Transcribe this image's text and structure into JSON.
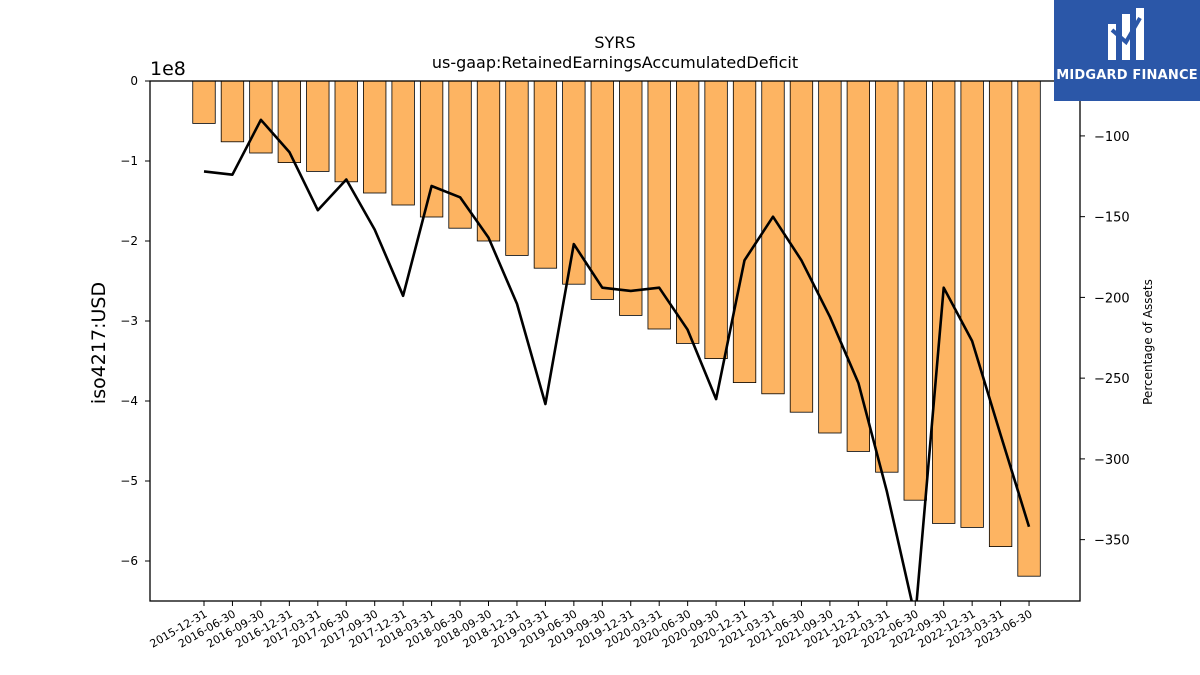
{
  "chart_data": {
    "type": "bar",
    "title": "SYRS",
    "subtitle": "us-gaap:RetainedEarningsAccumulatedDeficit",
    "ylabel": "iso4217:USD",
    "y2label": "Percentage of Assets",
    "y_offset_label": "1e8",
    "ylim": [
      -6.5,
      0
    ],
    "y_ticks": [
      0,
      -1,
      -2,
      -3,
      -4,
      -5,
      -6
    ],
    "y2lim": [
      -388,
      -66
    ],
    "y2_ticks": [
      -100,
      -150,
      -200,
      -250,
      -300,
      -350
    ],
    "categories": [
      "2015-12-31",
      "2016-06-30",
      "2016-09-30",
      "2016-12-31",
      "2017-03-31",
      "2017-06-30",
      "2017-09-30",
      "2017-12-31",
      "2018-03-31",
      "2018-06-30",
      "2018-09-30",
      "2018-12-31",
      "2019-03-31",
      "2019-06-30",
      "2019-09-30",
      "2019-12-31",
      "2020-03-31",
      "2020-06-30",
      "2020-09-30",
      "2020-12-31",
      "2021-03-31",
      "2021-06-30",
      "2021-09-30",
      "2021-12-31",
      "2022-03-31",
      "2022-06-30",
      "2022-09-30",
      "2022-12-31",
      "2023-03-31",
      "2023-06-30"
    ],
    "series": [
      {
        "type": "bar",
        "axis": "left",
        "color": "#fdb462",
        "values": [
          -0.53,
          -0.76,
          -0.9,
          -1.02,
          -1.13,
          -1.26,
          -1.4,
          -1.55,
          -1.7,
          -1.84,
          -2.0,
          -2.18,
          -2.34,
          -2.54,
          -2.73,
          -2.93,
          -3.1,
          -3.28,
          -3.47,
          -3.77,
          -3.91,
          -4.14,
          -4.4,
          -4.63,
          -4.89,
          -5.24,
          -5.53,
          -5.58,
          -5.82,
          -6.19
        ]
      },
      {
        "type": "line",
        "axis": "right",
        "color": "#000000",
        "values": [
          -122,
          -124,
          -90,
          -110,
          -146,
          -127,
          -158,
          -199,
          -131,
          -138,
          -163,
          -204,
          -266,
          -167,
          -194,
          -196,
          -194,
          -220,
          -263,
          -177,
          -150,
          -177,
          -212,
          -253,
          -320,
          -398,
          -194,
          -227,
          -285,
          -342
        ]
      }
    ],
    "grid": false,
    "legend": "none"
  },
  "logo": {
    "text": "MIDGARD FINANCE",
    "icon": "midgard-logo-icon",
    "color": "#2b57a8"
  }
}
